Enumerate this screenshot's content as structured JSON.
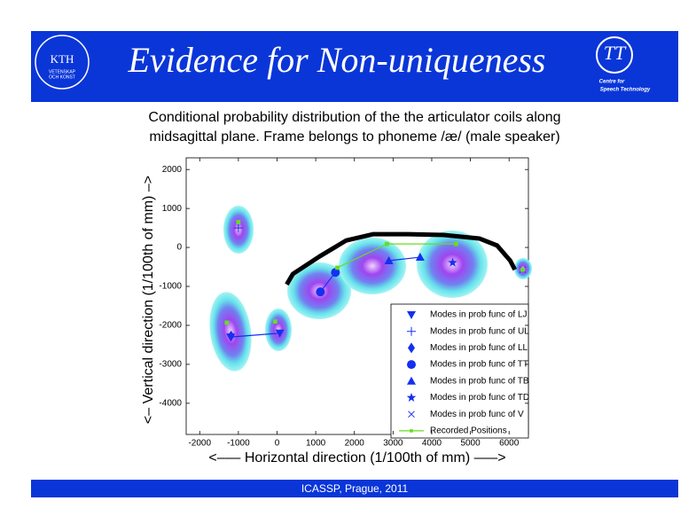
{
  "header": {
    "title": "Evidence for Non-uniqueness",
    "left_logo": [
      "KTH",
      "VETENSKAP",
      "OCH KONST"
    ],
    "right_logo": [
      "Centre for",
      "Speech Technology"
    ]
  },
  "caption": [
    "Conditional probability distribution of the the articulator coils along",
    "midsagittal plane. Frame belongs to phoneme /æ/ (male speaker)"
  ],
  "chart_data": {
    "type": "scatter",
    "xlabel": "<––– Horizontal direction (1/100th of mm) –––>",
    "ylabel": "<– Vertical direction (1/100th of mm) –>",
    "xlim": [
      -2350,
      6500
    ],
    "ylim": [
      -4800,
      2300
    ],
    "xticks": [
      -2000,
      -1000,
      0,
      1000,
      2000,
      3000,
      4000,
      5000,
      6000
    ],
    "yticks": [
      2000,
      1000,
      0,
      -1000,
      -2000,
      -3000,
      -4000
    ],
    "legend": "lower right",
    "series": [
      {
        "name": "Modes in prob func of LJ",
        "marker": "triangle-down",
        "color": "#1430f0",
        "x": [
          70,
          -1200
        ],
        "values": [
          -2200,
          -2300
        ]
      },
      {
        "name": "Modes in prob func of UL",
        "marker": "plus",
        "color": "#1430f0",
        "x": [
          -1000
        ],
        "values": [
          500
        ]
      },
      {
        "name": "Modes in prob func of LL",
        "marker": "diamond",
        "color": "#1430f0",
        "x": [
          -1190
        ],
        "values": [
          -2270
        ]
      },
      {
        "name": "Modes in prob func of TT",
        "marker": "circle",
        "color": "#1430f0",
        "x": [
          1120,
          1510
        ],
        "values": [
          -1140,
          -640
        ]
      },
      {
        "name": "Modes in prob func of TB",
        "marker": "triangle-up",
        "color": "#1430f0",
        "x": [
          2890,
          3700
        ],
        "values": [
          -340,
          -250
        ]
      },
      {
        "name": "Modes in prob func of TD",
        "marker": "star",
        "color": "#1430f0",
        "x": [
          4540
        ],
        "values": [
          -390
        ]
      },
      {
        "name": "Modes in prob func of V",
        "marker": "x",
        "color": "#1430f0",
        "x": [
          6350
        ],
        "values": [
          -570
        ]
      },
      {
        "name": "Recorded Positions",
        "marker": "square",
        "color": "#66dd22",
        "x": [
          -1000,
          null,
          -1300,
          null,
          -50,
          null,
          1560,
          2840,
          4630,
          null,
          6350
        ],
        "values": [
          650,
          null,
          -1930,
          null,
          -1900,
          null,
          -520,
          90,
          90,
          null,
          -570
        ]
      },
      {
        "marker": "none",
        "color": "#000000",
        "width": 5,
        "x": [
          250,
          410,
          1100,
          1790,
          2480,
          3390,
          4310,
          5230,
          5690,
          6030,
          6150
        ],
        "values": [
          -950,
          -680,
          -230,
          180,
          340,
          340,
          320,
          230,
          50,
          -340,
          -570
        ]
      }
    ]
  },
  "footer": "ICASSP, Prague,  2011"
}
